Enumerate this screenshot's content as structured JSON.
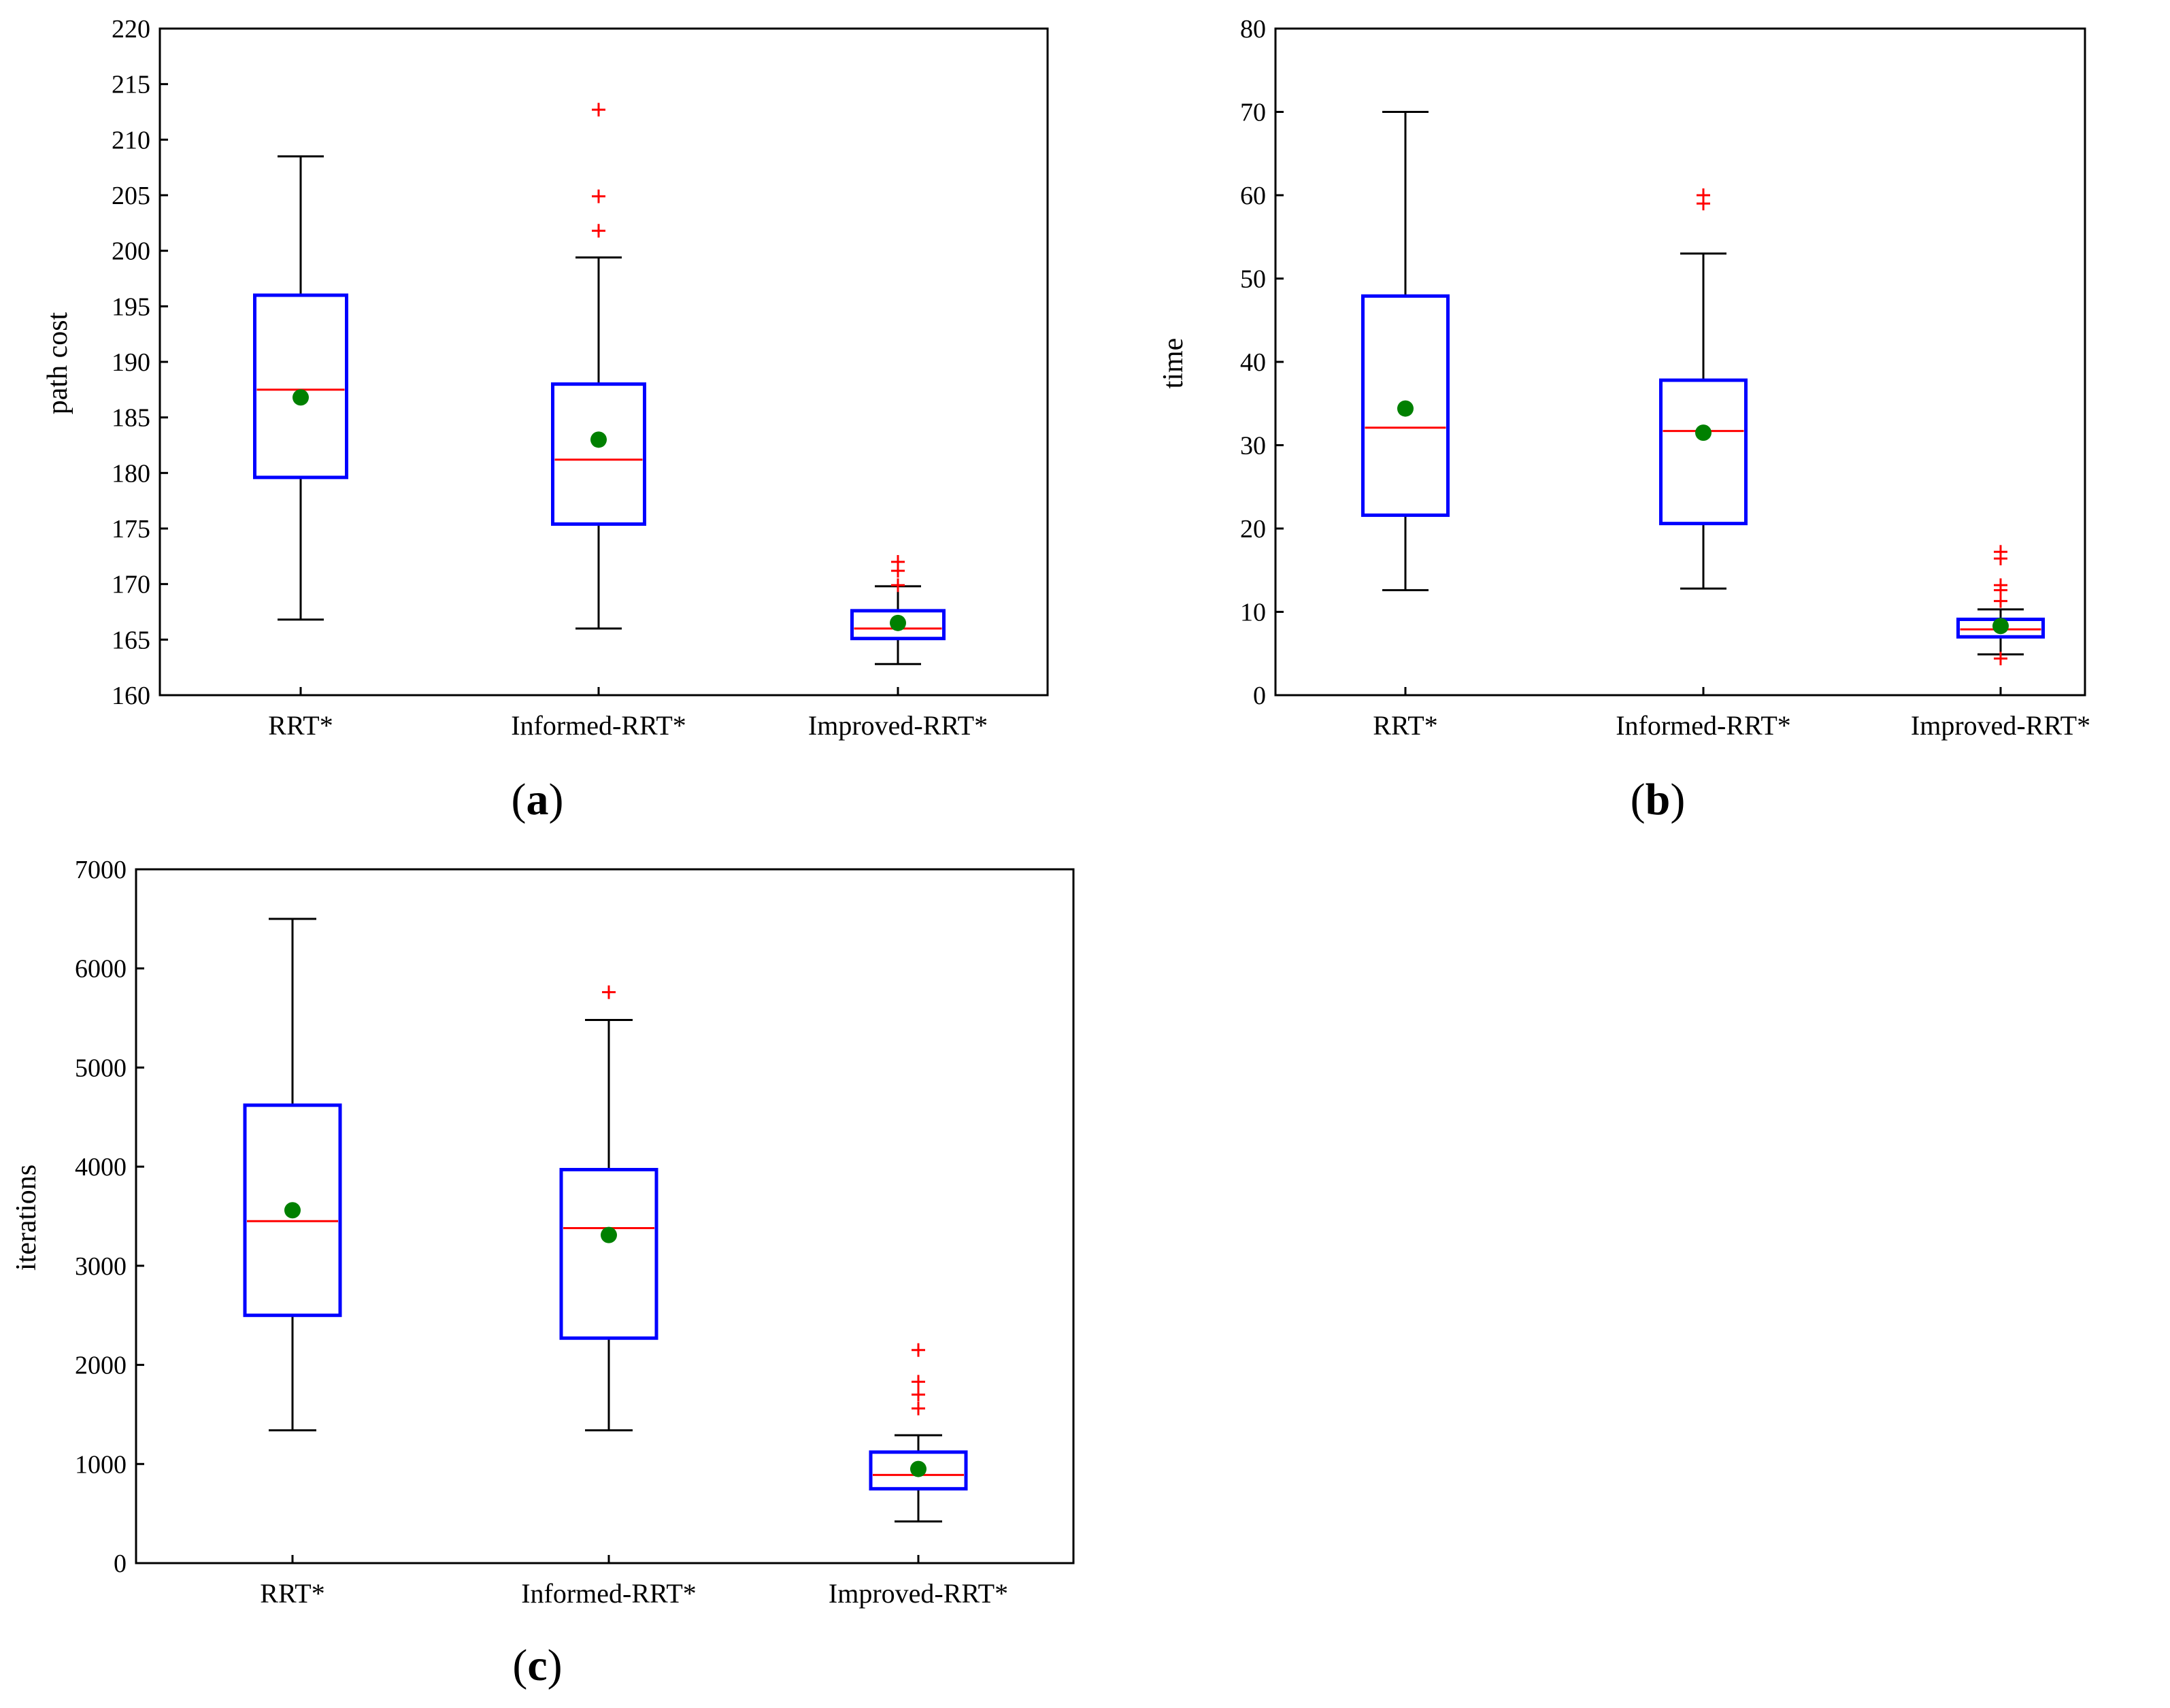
{
  "figure": {
    "panels": [
      "a",
      "b",
      "c"
    ]
  },
  "colors": {
    "box": "#0000ff",
    "median": "#ff0000",
    "mean": "#008000",
    "whisker": "#000000",
    "outlier": "#ff0000"
  },
  "chart_data": [
    {
      "id": "a",
      "type": "box",
      "panel_label": "a",
      "ylabel": "path cost",
      "xlabel": "",
      "ylim": [
        160,
        220
      ],
      "yticks": [
        160,
        165,
        170,
        175,
        180,
        185,
        190,
        195,
        200,
        205,
        210,
        215,
        220
      ],
      "categories": [
        "RRT*",
        "Informed-RRT*",
        "Improved-RRT*"
      ],
      "boxes": [
        {
          "whisker_low": 166.8,
          "q1": 179.6,
          "median": 187.5,
          "q3": 196.0,
          "whisker_high": 208.5,
          "mean": 186.8,
          "outliers": []
        },
        {
          "whisker_low": 166.0,
          "q1": 175.4,
          "median": 181.2,
          "q3": 188.0,
          "whisker_high": 199.4,
          "mean": 183.0,
          "outliers": [
            201.8,
            204.9,
            212.7
          ]
        },
        {
          "whisker_low": 162.8,
          "q1": 165.1,
          "median": 166.0,
          "q3": 167.6,
          "whisker_high": 169.8,
          "mean": 166.5,
          "outliers": [
            169.9,
            171.2,
            172.0
          ]
        }
      ]
    },
    {
      "id": "b",
      "type": "box",
      "panel_label": "b",
      "ylabel": "time",
      "xlabel": "",
      "ylim": [
        0,
        80
      ],
      "yticks": [
        0,
        10,
        20,
        30,
        40,
        50,
        60,
        70,
        80
      ],
      "categories": [
        "RRT*",
        "Informed-RRT*",
        "Improved-RRT*"
      ],
      "boxes": [
        {
          "whisker_low": 12.6,
          "q1": 21.6,
          "median": 32.1,
          "q3": 47.9,
          "whisker_high": 70.0,
          "mean": 34.4,
          "outliers": []
        },
        {
          "whisker_low": 12.8,
          "q1": 20.6,
          "median": 31.7,
          "q3": 37.8,
          "whisker_high": 53.0,
          "mean": 31.5,
          "outliers": [
            59.0,
            60.0
          ]
        },
        {
          "whisker_low": 4.9,
          "q1": 7.0,
          "median": 7.9,
          "q3": 9.1,
          "whisker_high": 10.3,
          "mean": 8.3,
          "outliers": [
            4.4,
            11.3,
            12.6,
            13.2,
            16.4,
            17.2
          ]
        }
      ]
    },
    {
      "id": "c",
      "type": "box",
      "panel_label": "c",
      "ylabel": "iterations",
      "xlabel": "",
      "ylim": [
        0,
        7000
      ],
      "yticks": [
        0,
        1000,
        2000,
        3000,
        4000,
        5000,
        6000,
        7000
      ],
      "categories": [
        "RRT*",
        "Informed-RRT*",
        "Improved-RRT*"
      ],
      "boxes": [
        {
          "whisker_low": 1340,
          "q1": 2500,
          "median": 3450,
          "q3": 4620,
          "whisker_high": 6500,
          "mean": 3560,
          "outliers": []
        },
        {
          "whisker_low": 1340,
          "q1": 2270,
          "median": 3380,
          "q3": 3970,
          "whisker_high": 5480,
          "mean": 3310,
          "outliers": [
            5760
          ]
        },
        {
          "whisker_low": 420,
          "q1": 750,
          "median": 890,
          "q3": 1120,
          "whisker_high": 1290,
          "mean": 950,
          "outliers": [
            1560,
            1700,
            1830,
            2150
          ]
        }
      ]
    }
  ]
}
